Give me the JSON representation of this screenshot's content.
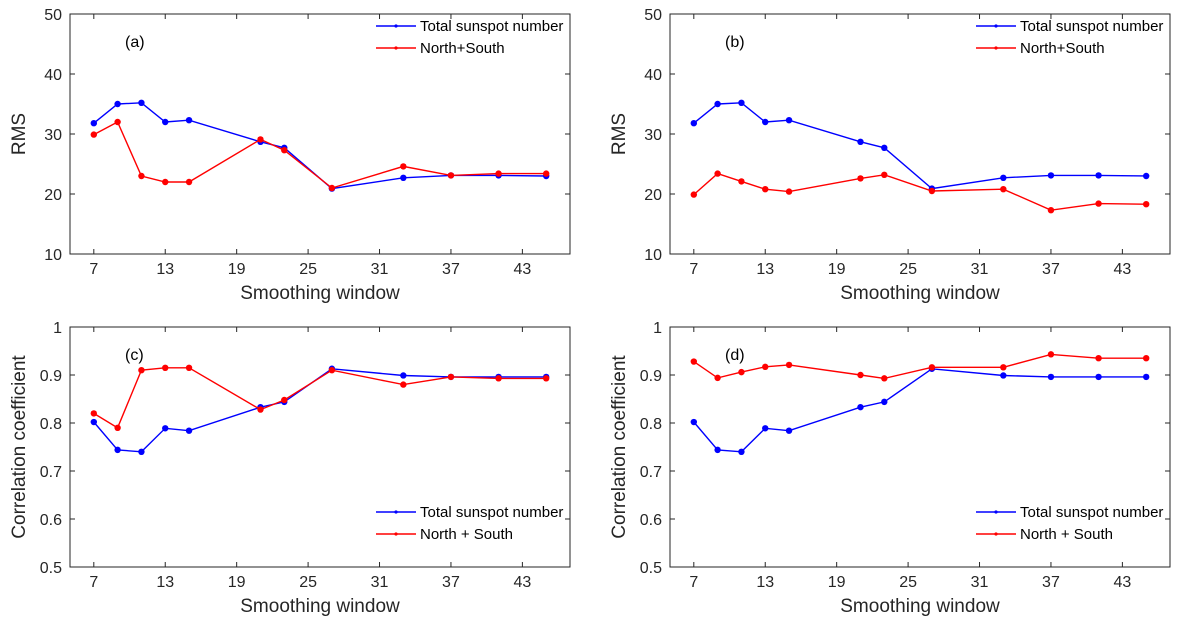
{
  "colors": {
    "blue": "#0000ff",
    "red": "#ff0000",
    "axis": "#262626",
    "background": "#ffffff"
  },
  "chart_data": [
    {
      "panel": "(a)",
      "type": "line",
      "xlabel": "Smoothing window",
      "ylabel": "RMS",
      "xlim": [
        5,
        47
      ],
      "ylim": [
        10,
        50
      ],
      "xticks": [
        7,
        13,
        19,
        25,
        31,
        37,
        43
      ],
      "yticks": [
        10,
        20,
        30,
        40,
        50
      ],
      "legend_position": "top-right",
      "series": [
        {
          "name": "Total sunspot number",
          "color": "#0000ff",
          "x": [
            7,
            9,
            11,
            13,
            15,
            21,
            23,
            27,
            33,
            37,
            41,
            45
          ],
          "y": [
            31.8,
            35.0,
            35.2,
            32.0,
            32.3,
            28.7,
            27.7,
            20.9,
            22.7,
            23.1,
            23.1,
            23.0
          ]
        },
        {
          "name": "North+South",
          "color": "#ff0000",
          "x": [
            7,
            9,
            11,
            13,
            15,
            21,
            23,
            27,
            33,
            37,
            41,
            45
          ],
          "y": [
            29.9,
            32.0,
            23.0,
            22.0,
            22.0,
            29.1,
            27.3,
            21.0,
            24.6,
            23.1,
            23.4,
            23.4
          ]
        }
      ]
    },
    {
      "panel": "(b)",
      "type": "line",
      "xlabel": "Smoothing window",
      "ylabel": "RMS",
      "xlim": [
        5,
        47
      ],
      "ylim": [
        10,
        50
      ],
      "xticks": [
        7,
        13,
        19,
        25,
        31,
        37,
        43
      ],
      "yticks": [
        10,
        20,
        30,
        40,
        50
      ],
      "legend_position": "top-right",
      "series": [
        {
          "name": "Total sunspot number",
          "color": "#0000ff",
          "x": [
            7,
            9,
            11,
            13,
            15,
            21,
            23,
            27,
            33,
            37,
            41,
            45
          ],
          "y": [
            31.8,
            35.0,
            35.2,
            32.0,
            32.3,
            28.7,
            27.7,
            20.9,
            22.7,
            23.1,
            23.1,
            23.0
          ]
        },
        {
          "name": "North+South",
          "color": "#ff0000",
          "x": [
            7,
            9,
            11,
            13,
            15,
            21,
            23,
            27,
            33,
            37,
            41,
            45
          ],
          "y": [
            19.9,
            23.4,
            22.1,
            20.8,
            20.4,
            22.6,
            23.2,
            20.5,
            20.8,
            17.3,
            18.4,
            18.3
          ]
        }
      ]
    },
    {
      "panel": "(c)",
      "type": "line",
      "xlabel": "Smoothing window",
      "ylabel": "Correlation coefficient",
      "xlim": [
        5,
        47
      ],
      "ylim": [
        0.5,
        1
      ],
      "xticks": [
        7,
        13,
        19,
        25,
        31,
        37,
        43
      ],
      "yticks": [
        0.5,
        0.6,
        0.7,
        0.8,
        0.9,
        1
      ],
      "legend_position": "bottom-right",
      "series": [
        {
          "name": "Total sunspot number",
          "color": "#0000ff",
          "x": [
            7,
            9,
            11,
            13,
            15,
            21,
            23,
            27,
            33,
            37,
            41,
            45
          ],
          "y": [
            0.802,
            0.744,
            0.74,
            0.789,
            0.784,
            0.833,
            0.844,
            0.913,
            0.899,
            0.896,
            0.896,
            0.896
          ]
        },
        {
          "name": "North + South",
          "color": "#ff0000",
          "x": [
            7,
            9,
            11,
            13,
            15,
            21,
            23,
            27,
            33,
            37,
            41,
            45
          ],
          "y": [
            0.82,
            0.79,
            0.91,
            0.915,
            0.915,
            0.828,
            0.848,
            0.91,
            0.88,
            0.896,
            0.893,
            0.893
          ]
        }
      ]
    },
    {
      "panel": "(d)",
      "type": "line",
      "xlabel": "Smoothing window",
      "ylabel": "Correlation coefficient",
      "xlim": [
        5,
        47
      ],
      "ylim": [
        0.5,
        1
      ],
      "xticks": [
        7,
        13,
        19,
        25,
        31,
        37,
        43
      ],
      "yticks": [
        0.5,
        0.6,
        0.7,
        0.8,
        0.9,
        1
      ],
      "legend_position": "bottom-right",
      "series": [
        {
          "name": "Total sunspot number",
          "color": "#0000ff",
          "x": [
            7,
            9,
            11,
            13,
            15,
            21,
            23,
            27,
            33,
            37,
            41,
            45
          ],
          "y": [
            0.802,
            0.744,
            0.74,
            0.789,
            0.784,
            0.833,
            0.844,
            0.913,
            0.899,
            0.896,
            0.896,
            0.896
          ]
        },
        {
          "name": "North + South",
          "color": "#ff0000",
          "x": [
            7,
            9,
            11,
            13,
            15,
            21,
            23,
            27,
            33,
            37,
            41,
            45
          ],
          "y": [
            0.928,
            0.894,
            0.906,
            0.917,
            0.921,
            0.9,
            0.893,
            0.916,
            0.916,
            0.943,
            0.935,
            0.935
          ]
        }
      ]
    }
  ]
}
